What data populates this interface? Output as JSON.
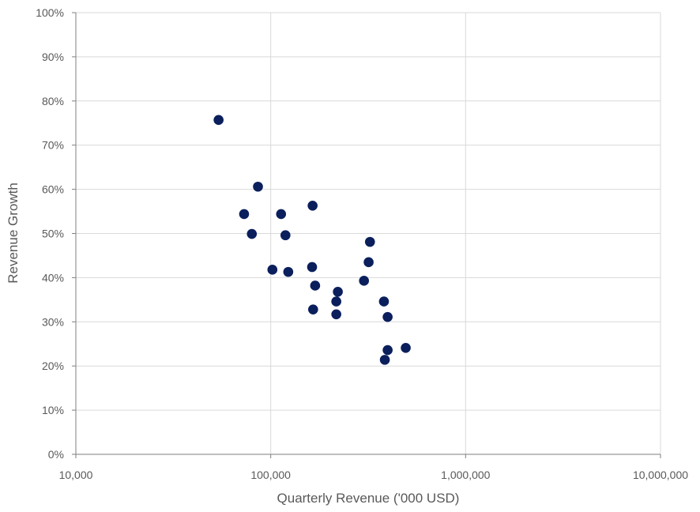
{
  "chart_data": {
    "type": "scatter",
    "xlabel": "Quarterly Revenue ('000 USD)",
    "ylabel": "Revenue Growth",
    "x_scale": "log",
    "xlim": [
      10000,
      10000000
    ],
    "ylim": [
      0,
      1
    ],
    "x_ticks": [
      10000,
      100000,
      1000000,
      10000000
    ],
    "x_tick_labels": [
      "10,000",
      "100,000",
      "1,000,000",
      "10,000,000"
    ],
    "y_ticks": [
      0,
      0.1,
      0.2,
      0.3,
      0.4,
      0.5,
      0.6,
      0.7,
      0.8,
      0.9,
      1.0
    ],
    "y_tick_labels": [
      "0%",
      "10%",
      "20%",
      "30%",
      "40%",
      "50%",
      "60%",
      "70%",
      "80%",
      "90%",
      "100%"
    ],
    "grid": "x and y",
    "marker_color": "#0a1f5c",
    "grid_color": "#d9d9d9",
    "axis_color": "#7f7f7f",
    "points": [
      {
        "x": 54000,
        "y": 0.757
      },
      {
        "x": 86000,
        "y": 0.606
      },
      {
        "x": 73000,
        "y": 0.544
      },
      {
        "x": 80000,
        "y": 0.499
      },
      {
        "x": 113000,
        "y": 0.544
      },
      {
        "x": 119000,
        "y": 0.496
      },
      {
        "x": 164000,
        "y": 0.563
      },
      {
        "x": 102000,
        "y": 0.418
      },
      {
        "x": 123000,
        "y": 0.413
      },
      {
        "x": 163000,
        "y": 0.424
      },
      {
        "x": 169000,
        "y": 0.382
      },
      {
        "x": 165000,
        "y": 0.328
      },
      {
        "x": 221000,
        "y": 0.368
      },
      {
        "x": 217000,
        "y": 0.346
      },
      {
        "x": 217000,
        "y": 0.317
      },
      {
        "x": 323000,
        "y": 0.481
      },
      {
        "x": 318000,
        "y": 0.435
      },
      {
        "x": 301000,
        "y": 0.393
      },
      {
        "x": 381000,
        "y": 0.346
      },
      {
        "x": 398000,
        "y": 0.311
      },
      {
        "x": 398000,
        "y": 0.236
      },
      {
        "x": 385000,
        "y": 0.214
      },
      {
        "x": 493000,
        "y": 0.241
      }
    ]
  }
}
